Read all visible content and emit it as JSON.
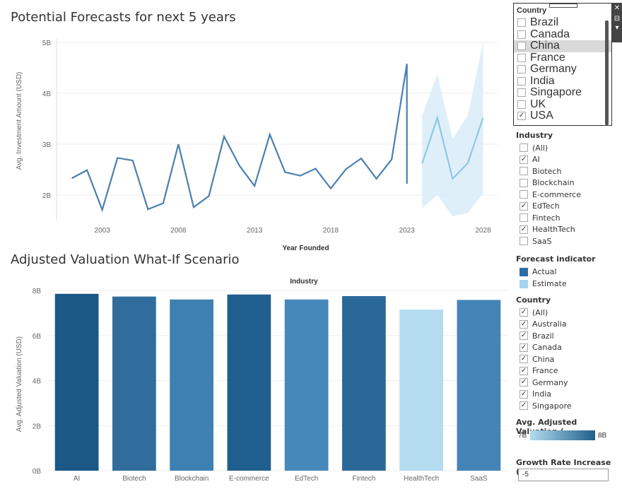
{
  "forecast": {
    "title": "Potential Forecasts for next 5 years",
    "chart_data": {
      "type": "line",
      "title": "Potential Forecasts for next 5 years",
      "xlabel": "Year Founded",
      "ylabel": "Avg. Investment Amount (USD)",
      "ylim": [
        1.5,
        5.0
      ],
      "xlim": [
        2000,
        2029
      ],
      "xticks": [
        "2003",
        "2008",
        "2013",
        "2018",
        "2023",
        "2028"
      ],
      "yticks": [
        "2B",
        "3B",
        "4B",
        "5B"
      ],
      "series": [
        {
          "name": "Actual",
          "color": "#4a7fb0",
          "x": [
            2001,
            2002,
            2003,
            2004,
            2005,
            2006,
            2007,
            2008,
            2009,
            2010,
            2011,
            2012,
            2013,
            2014,
            2015,
            2016,
            2017,
            2018,
            2019,
            2020,
            2021,
            2022,
            2023
          ],
          "y": [
            2.33,
            2.49,
            1.71,
            2.73,
            2.68,
            1.72,
            1.84,
            3.0,
            1.76,
            1.98,
            3.15,
            2.58,
            2.18,
            3.19,
            2.45,
            2.38,
            2.52,
            2.13,
            2.51,
            2.72,
            2.32,
            2.7,
            4.58
          ]
        },
        {
          "name": "Estimate",
          "color": "#8ec8e8",
          "x": [
            2024,
            2025,
            2026,
            2027,
            2028
          ],
          "y": [
            2.62,
            3.52,
            2.32,
            2.63,
            3.52
          ],
          "band_low": [
            1.74,
            2.0,
            1.58,
            1.65,
            2.03
          ],
          "band_high": [
            3.57,
            4.37,
            3.1,
            3.57,
            5.0
          ]
        }
      ],
      "extra_point": {
        "x": 2023,
        "y": 2.22
      }
    }
  },
  "valuation": {
    "title": "Adjusted Valuation What-If Scenario",
    "chart_data": {
      "type": "bar",
      "title": "Adjusted Valuation What-If Scenario",
      "header": "Industry",
      "ylabel": "Avg. Adjusted Valuation (USD)",
      "ylim": [
        0,
        8
      ],
      "yticks": [
        "0B",
        "2B",
        "4B",
        "6B",
        "8B"
      ],
      "categories": [
        "AI",
        "Biotech",
        "Blockchain",
        "E-commerce",
        "EdTech",
        "Fintech",
        "HealthTech",
        "SaaS"
      ],
      "values": [
        7.85,
        7.73,
        7.6,
        7.82,
        7.6,
        7.75,
        7.15,
        7.58
      ],
      "colors": [
        "#1b5886",
        "#306d9c",
        "#3f80b2",
        "#1f5f8d",
        "#4788bb",
        "#2a6897",
        "#b3dcf0",
        "#4484b7"
      ]
    }
  },
  "country_popup": {
    "title": "Country",
    "items": [
      {
        "label": "Brazil",
        "checked": false
      },
      {
        "label": "Canada",
        "checked": false
      },
      {
        "label": "China",
        "checked": false,
        "highlight": true
      },
      {
        "label": "France",
        "checked": false
      },
      {
        "label": "Germany",
        "checked": false
      },
      {
        "label": "India",
        "checked": false
      },
      {
        "label": "Singapore",
        "checked": false
      },
      {
        "label": "UK",
        "checked": false
      },
      {
        "label": "USA",
        "checked": true
      }
    ]
  },
  "industry_filter": {
    "title": "Industry",
    "items": [
      {
        "label": "(All)",
        "checked": false
      },
      {
        "label": "AI",
        "checked": true
      },
      {
        "label": "Biotech",
        "checked": false
      },
      {
        "label": "Blockchain",
        "checked": false
      },
      {
        "label": "E-commerce",
        "checked": false
      },
      {
        "label": "EdTech",
        "checked": true
      },
      {
        "label": "Fintech",
        "checked": false
      },
      {
        "label": "HealthTech",
        "checked": true
      },
      {
        "label": "SaaS",
        "checked": false
      }
    ]
  },
  "forecast_indicator": {
    "title": "Forecast indicator",
    "items": [
      {
        "label": "Actual",
        "color": "#2e6ca4"
      },
      {
        "label": "Estimate",
        "color": "#a6d3ee"
      }
    ]
  },
  "country_filter": {
    "title": "Country",
    "items": [
      {
        "label": "(All)",
        "checked": true
      },
      {
        "label": "Australia",
        "checked": true
      },
      {
        "label": "Brazil",
        "checked": true
      },
      {
        "label": "Canada",
        "checked": true
      },
      {
        "label": "China",
        "checked": true
      },
      {
        "label": "France",
        "checked": true
      },
      {
        "label": "Germany",
        "checked": true
      },
      {
        "label": "India",
        "checked": true
      },
      {
        "label": "Singapore",
        "checked": true
      }
    ]
  },
  "valuation_legend": {
    "title": "Avg. Adjusted Valuation (..",
    "min_label": "7B",
    "max_label": "8B"
  },
  "growth_rate": {
    "title": "Growth Rate Increase (%)",
    "value": "-5"
  }
}
